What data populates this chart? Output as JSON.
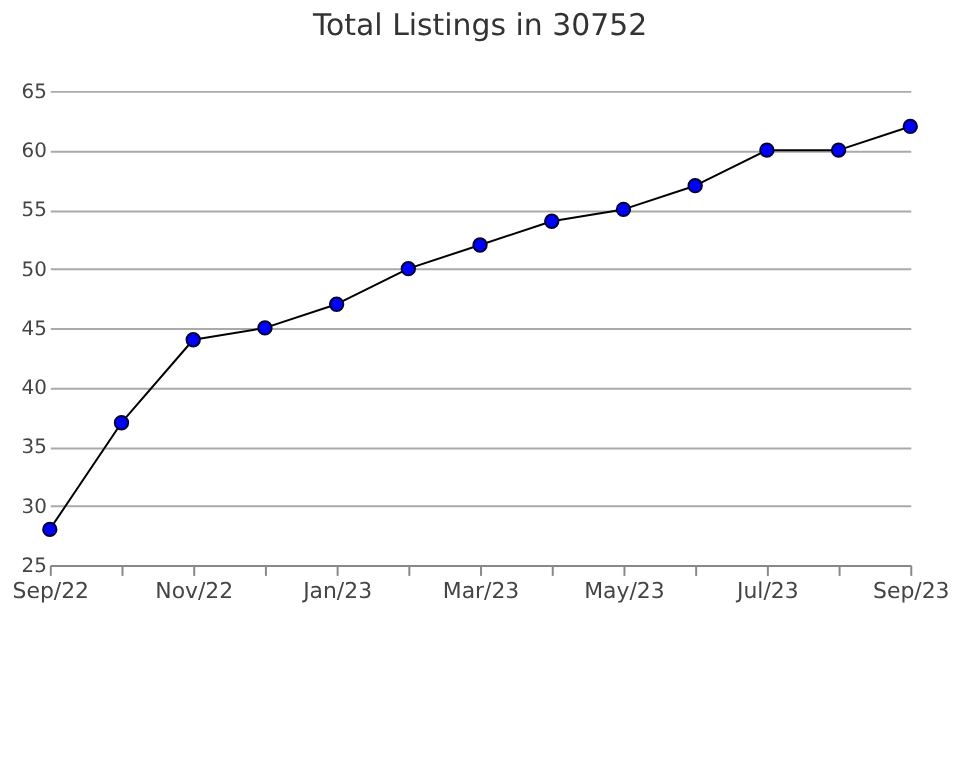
{
  "chart_data": {
    "type": "line",
    "title": "Total Listings in 30752",
    "categories": [
      "Sep/22",
      null,
      "Nov/22",
      null,
      "Jan/23",
      null,
      "Mar/23",
      null,
      "May/23",
      null,
      "Jul/23",
      null,
      "Sep/23"
    ],
    "series": [
      {
        "color": "#0000ff",
        "values": [
          28,
          37,
          44,
          45,
          47,
          50,
          52,
          54,
          55,
          57,
          60,
          60,
          62
        ]
      }
    ],
    "ylim": [
      25,
      65
    ],
    "yticks": [
      25,
      30,
      35,
      40,
      45,
      50,
      55,
      60,
      65
    ],
    "grid": "y",
    "marker": "circle",
    "line_style": "solid"
  }
}
